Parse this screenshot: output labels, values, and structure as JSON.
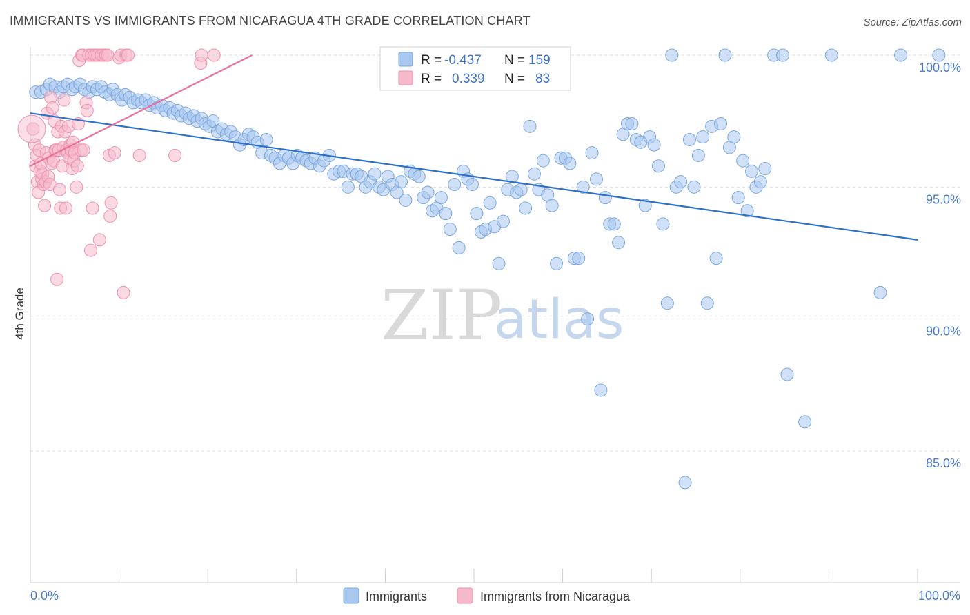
{
  "title": "IMMIGRANTS VS IMMIGRANTS FROM NICARAGUA 4TH GRADE CORRELATION CHART",
  "source": "Source: ZipAtlas.com",
  "watermark": {
    "zip": "ZIP",
    "atlas": "atlas"
  },
  "colors": {
    "blue_fill": "#a9c8f0",
    "blue_stroke": "#7aa6dd",
    "blue_line": "#2c6fcc",
    "pink_fill": "#f6b9cc",
    "pink_stroke": "#ee90ad",
    "pink_line": "#e8709a",
    "grid": "#dddddd",
    "label_blue": "#4a7cc9"
  },
  "legend": {
    "rows": [
      {
        "r_label": "R =",
        "r_value": "-0.437",
        "n_label": "N =",
        "n_value": "159"
      },
      {
        "r_label": "R =",
        "r_value": "0.339",
        "n_label": "N =",
        "n_value": "83"
      }
    ]
  },
  "chart_data": {
    "type": "scatter",
    "title": "IMMIGRANTS VS IMMIGRANTS FROM NICARAGUA 4TH GRADE CORRELATION CHART",
    "xlabel": "",
    "ylabel": "4th Grade",
    "xlim": [
      0,
      100
    ],
    "ylim": [
      80.0,
      100.5
    ],
    "x_tick_labels": [
      "0.0%",
      "100.0%"
    ],
    "y_ticks": [
      {
        "value": 100,
        "label": "100.0%"
      },
      {
        "value": 95,
        "label": "95.0%"
      },
      {
        "value": 90,
        "label": "90.0%"
      },
      {
        "value": 85,
        "label": "85.0%"
      }
    ],
    "series": [
      {
        "name": "Immigrants",
        "color": "blue",
        "trend": {
          "x": [
            0,
            100
          ],
          "y": [
            97.8,
            93.0
          ]
        },
        "points": [
          [
            0.6,
            98.6
          ],
          [
            1.2,
            98.6
          ],
          [
            1.8,
            98.7
          ],
          [
            2.2,
            98.9
          ],
          [
            2.8,
            98.8
          ],
          [
            3.3,
            98.6
          ],
          [
            3.7,
            98.8
          ],
          [
            4.2,
            98.9
          ],
          [
            4.7,
            98.7
          ],
          [
            5.1,
            98.8
          ],
          [
            5.6,
            98.9
          ],
          [
            6.1,
            98.7
          ],
          [
            6.6,
            98.6
          ],
          [
            7.0,
            98.8
          ],
          [
            7.5,
            98.7
          ],
          [
            8.0,
            98.8
          ],
          [
            8.4,
            98.6
          ],
          [
            8.9,
            98.5
          ],
          [
            9.3,
            98.7
          ],
          [
            9.8,
            98.5
          ],
          [
            10.3,
            98.3
          ],
          [
            10.7,
            98.5
          ],
          [
            11.2,
            98.4
          ],
          [
            11.6,
            98.2
          ],
          [
            12.1,
            98.3
          ],
          [
            12.5,
            98.2
          ],
          [
            13.0,
            98.3
          ],
          [
            13.4,
            98.1
          ],
          [
            13.9,
            98.2
          ],
          [
            14.3,
            98.0
          ],
          [
            14.8,
            98.1
          ],
          [
            15.2,
            97.9
          ],
          [
            15.7,
            98.0
          ],
          [
            16.1,
            97.8
          ],
          [
            16.6,
            97.9
          ],
          [
            17.0,
            97.7
          ],
          [
            17.5,
            97.8
          ],
          [
            17.9,
            97.6
          ],
          [
            18.4,
            97.7
          ],
          [
            18.8,
            97.5
          ],
          [
            19.3,
            97.6
          ],
          [
            19.7,
            97.4
          ],
          [
            20.2,
            97.3
          ],
          [
            20.6,
            97.5
          ],
          [
            21.1,
            97.1
          ],
          [
            21.6,
            97.2
          ],
          [
            22.1,
            97.0
          ],
          [
            22.6,
            97.1
          ],
          [
            23.1,
            96.9
          ],
          [
            23.6,
            96.6
          ],
          [
            24.1,
            96.8
          ],
          [
            24.6,
            97.0
          ],
          [
            25.1,
            96.9
          ],
          [
            25.6,
            96.7
          ],
          [
            26.1,
            96.3
          ],
          [
            26.6,
            96.8
          ],
          [
            27.1,
            96.2
          ],
          [
            27.6,
            96.1
          ],
          [
            28.1,
            95.9
          ],
          [
            28.6,
            96.2
          ],
          [
            29.1,
            96.1
          ],
          [
            29.6,
            95.9
          ],
          [
            30.1,
            96.2
          ],
          [
            30.6,
            96.1
          ],
          [
            31.1,
            96.0
          ],
          [
            31.6,
            95.9
          ],
          [
            32.1,
            96.1
          ],
          [
            32.6,
            95.8
          ],
          [
            33.1,
            96.0
          ],
          [
            33.7,
            96.2
          ],
          [
            34.2,
            95.5
          ],
          [
            34.8,
            95.6
          ],
          [
            35.3,
            95.6
          ],
          [
            35.8,
            95.0
          ],
          [
            36.3,
            95.5
          ],
          [
            36.8,
            95.5
          ],
          [
            37.3,
            95.4
          ],
          [
            37.8,
            95.0
          ],
          [
            38.3,
            95.2
          ],
          [
            38.8,
            95.5
          ],
          [
            39.3,
            95.0
          ],
          [
            39.8,
            94.9
          ],
          [
            40.3,
            95.4
          ],
          [
            40.8,
            95.1
          ],
          [
            41.3,
            94.8
          ],
          [
            41.8,
            95.2
          ],
          [
            42.3,
            94.5
          ],
          [
            42.8,
            95.6
          ],
          [
            43.3,
            95.5
          ],
          [
            43.8,
            95.4
          ],
          [
            44.3,
            94.6
          ],
          [
            44.8,
            94.8
          ],
          [
            45.3,
            94.1
          ],
          [
            45.8,
            94.2
          ],
          [
            46.3,
            94.6
          ],
          [
            46.8,
            94.0
          ],
          [
            47.3,
            93.4
          ],
          [
            47.8,
            95.1
          ],
          [
            48.3,
            92.7
          ],
          [
            48.8,
            95.6
          ],
          [
            49.3,
            95.3
          ],
          [
            49.8,
            95.1
          ],
          [
            50.3,
            94.0
          ],
          [
            50.8,
            93.3
          ],
          [
            51.3,
            93.4
          ],
          [
            51.8,
            94.4
          ],
          [
            52.3,
            93.5
          ],
          [
            52.8,
            92.1
          ],
          [
            53.3,
            93.7
          ],
          [
            53.8,
            94.9
          ],
          [
            54.3,
            95.4
          ],
          [
            54.8,
            94.8
          ],
          [
            55.3,
            94.9
          ],
          [
            55.8,
            94.2
          ],
          [
            56.3,
            97.3
          ],
          [
            56.8,
            95.5
          ],
          [
            57.3,
            94.9
          ],
          [
            57.8,
            96.0
          ],
          [
            58.3,
            94.7
          ],
          [
            58.8,
            94.3
          ],
          [
            59.3,
            92.1
          ],
          [
            59.8,
            96.1
          ],
          [
            60.3,
            96.1
          ],
          [
            60.8,
            95.9
          ],
          [
            61.3,
            92.3
          ],
          [
            61.8,
            92.3
          ],
          [
            62.3,
            95.0
          ],
          [
            62.8,
            90.0
          ],
          [
            63.3,
            96.3
          ],
          [
            63.8,
            95.3
          ],
          [
            64.3,
            87.3
          ],
          [
            64.8,
            94.6
          ],
          [
            65.3,
            93.6
          ],
          [
            65.8,
            93.6
          ],
          [
            66.3,
            92.9
          ],
          [
            66.8,
            97.0
          ],
          [
            67.3,
            97.4
          ],
          [
            67.8,
            97.4
          ],
          [
            68.3,
            96.8
          ],
          [
            68.8,
            96.7
          ],
          [
            69.3,
            94.3
          ],
          [
            69.8,
            96.9
          ],
          [
            70.3,
            96.6
          ],
          [
            70.8,
            95.8
          ],
          [
            71.3,
            93.6
          ],
          [
            71.8,
            90.6
          ],
          [
            72.3,
            100.0
          ],
          [
            72.8,
            95.0
          ],
          [
            73.3,
            95.2
          ],
          [
            73.8,
            83.8
          ],
          [
            74.3,
            96.8
          ],
          [
            74.8,
            95.0
          ],
          [
            75.3,
            96.2
          ],
          [
            75.8,
            96.9
          ],
          [
            76.3,
            90.6
          ],
          [
            76.8,
            97.3
          ],
          [
            77.3,
            92.3
          ],
          [
            77.8,
            97.4
          ],
          [
            78.3,
            100.0
          ],
          [
            78.8,
            96.5
          ],
          [
            79.3,
            96.9
          ],
          [
            79.8,
            94.6
          ],
          [
            80.3,
            96.0
          ],
          [
            80.8,
            94.1
          ],
          [
            81.3,
            95.6
          ],
          [
            81.8,
            95.0
          ],
          [
            82.3,
            95.2
          ],
          [
            82.8,
            95.7
          ],
          [
            83.8,
            100.0
          ],
          [
            84.8,
            100.0
          ],
          [
            85.3,
            87.9
          ],
          [
            87.3,
            86.1
          ],
          [
            90.3,
            100.0
          ],
          [
            95.8,
            91.0
          ],
          [
            98.1,
            100.0
          ],
          [
            102.4,
            100.0
          ]
        ]
      },
      {
        "name": "Immigrants from Nicaragua",
        "color": "pink",
        "trend": {
          "x": [
            0,
            25
          ],
          "y": [
            95.8,
            100.0
          ]
        },
        "points": [
          [
            0.3,
            97.2
          ],
          [
            0.5,
            96.6
          ],
          [
            0.6,
            95.8
          ],
          [
            0.7,
            96.2
          ],
          [
            0.8,
            95.2
          ],
          [
            0.9,
            94.8
          ],
          [
            1.0,
            96.4
          ],
          [
            1.1,
            95.6
          ],
          [
            1.2,
            95.9
          ],
          [
            1.3,
            95.3
          ],
          [
            1.4,
            95.5
          ],
          [
            1.5,
            95.1
          ],
          [
            1.6,
            94.3
          ],
          [
            1.7,
            95.2
          ],
          [
            1.8,
            96.3
          ],
          [
            1.9,
            97.8
          ],
          [
            2.0,
            95.4
          ],
          [
            2.1,
            96.1
          ],
          [
            2.2,
            95.1
          ],
          [
            2.3,
            98.4
          ],
          [
            2.4,
            95.9
          ],
          [
            2.5,
            98.0
          ],
          [
            2.6,
            96.0
          ],
          [
            2.7,
            97.5
          ],
          [
            2.8,
            96.4
          ],
          [
            2.9,
            96.4
          ],
          [
            3.0,
            91.5
          ],
          [
            3.1,
            97.1
          ],
          [
            3.2,
            96.4
          ],
          [
            3.3,
            94.9
          ],
          [
            3.4,
            94.2
          ],
          [
            3.5,
            97.3
          ],
          [
            3.6,
            95.8
          ],
          [
            3.7,
            96.5
          ],
          [
            3.8,
            98.3
          ],
          [
            3.9,
            97.1
          ],
          [
            4.0,
            94.2
          ],
          [
            4.1,
            96.4
          ],
          [
            4.2,
            96.3
          ],
          [
            4.3,
            97.3
          ],
          [
            4.4,
            96.1
          ],
          [
            4.5,
            96.6
          ],
          [
            4.6,
            96.4
          ],
          [
            4.7,
            95.7
          ],
          [
            4.8,
            96.7
          ],
          [
            4.9,
            96.0
          ],
          [
            5.0,
            96.3
          ],
          [
            5.2,
            95.0
          ],
          [
            5.3,
            95.8
          ],
          [
            5.4,
            97.4
          ],
          [
            5.5,
            99.8
          ],
          [
            5.7,
            96.4
          ],
          [
            5.8,
            100.0
          ],
          [
            5.9,
            100.0
          ],
          [
            6.0,
            96.4
          ],
          [
            6.3,
            98.2
          ],
          [
            6.4,
            97.9
          ],
          [
            6.6,
            100.0
          ],
          [
            6.8,
            92.6
          ],
          [
            6.9,
            100.0
          ],
          [
            7.0,
            94.2
          ],
          [
            7.2,
            100.0
          ],
          [
            7.4,
            100.0
          ],
          [
            7.6,
            100.0
          ],
          [
            7.8,
            93.0
          ],
          [
            8.0,
            100.0
          ],
          [
            8.2,
            100.0
          ],
          [
            8.5,
            100.0
          ],
          [
            8.7,
            100.0
          ],
          [
            8.9,
            96.2
          ],
          [
            9.0,
            93.9
          ],
          [
            9.1,
            94.4
          ],
          [
            9.5,
            96.3
          ],
          [
            10.0,
            99.9
          ],
          [
            10.2,
            100.0
          ],
          [
            10.5,
            91.0
          ],
          [
            10.8,
            100.0
          ],
          [
            11.0,
            100.0
          ],
          [
            12.3,
            96.2
          ],
          [
            16.3,
            96.2
          ],
          [
            19.2,
            99.7
          ],
          [
            19.3,
            100.0
          ],
          [
            20.7,
            100.0
          ]
        ]
      }
    ]
  },
  "bottom_legend": [
    {
      "label": "Immigrants",
      "color": "blue"
    },
    {
      "label": "Immigrants from Nicaragua",
      "color": "pink"
    }
  ]
}
